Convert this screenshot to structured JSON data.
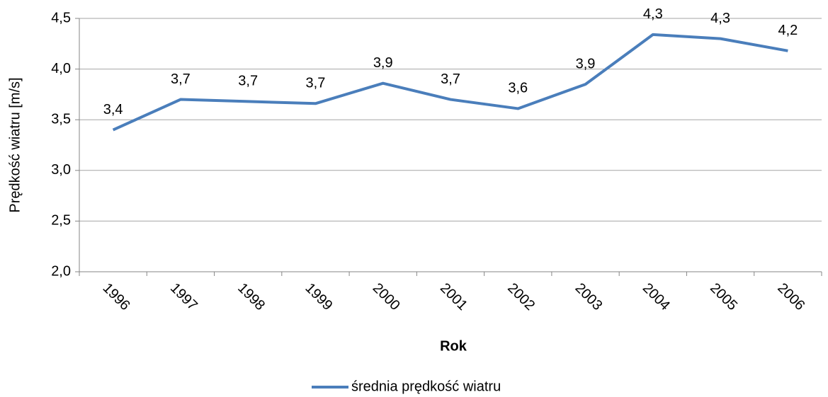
{
  "chart_data": {
    "type": "line",
    "x_label": "Rok",
    "y_label": "Prędkość wiatru [m/s]",
    "categories": [
      "1996",
      "1997",
      "1998",
      "1999",
      "2000",
      "2001",
      "2002",
      "2003",
      "2004",
      "2005",
      "2006"
    ],
    "series": [
      {
        "name": "średnia prędkość wiatru",
        "color": "#4a7ebb",
        "values": [
          3.4,
          3.7,
          3.68,
          3.66,
          3.86,
          3.7,
          3.61,
          3.85,
          4.34,
          4.3,
          4.18
        ],
        "value_labels": [
          "3,4",
          "3,7",
          "3,7",
          "3,7",
          "3,9",
          "3,7",
          "3,6",
          "3,9",
          "4,3",
          "4,3",
          "4,2"
        ]
      }
    ],
    "ylim": [
      2.0,
      4.5
    ],
    "yticks": [
      {
        "value": 2.0,
        "label": "2,0"
      },
      {
        "value": 2.5,
        "label": "2,5"
      },
      {
        "value": 3.0,
        "label": "3,0"
      },
      {
        "value": 3.5,
        "label": "3,5"
      },
      {
        "value": 4.0,
        "label": "4,0"
      },
      {
        "value": 4.5,
        "label": "4,5"
      }
    ],
    "grid": true,
    "legend": "bottom"
  }
}
